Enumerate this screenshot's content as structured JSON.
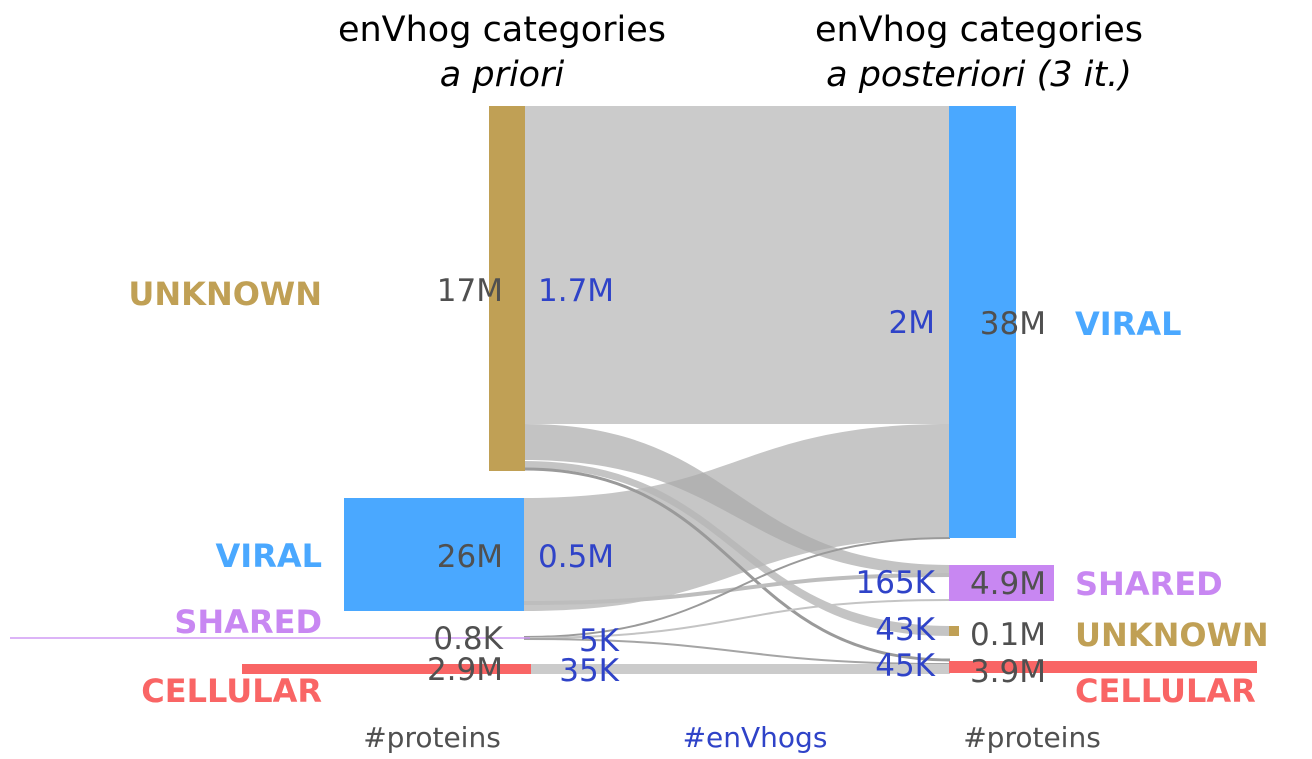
{
  "chart_data": {
    "type": "sankey",
    "columns": [
      {
        "title": "enVhog categories",
        "subtitle": "a priori"
      },
      {
        "title": "enVhog categories",
        "subtitle": "a posteriori (3 it.)"
      }
    ],
    "left_nodes": [
      {
        "label": "UNKNOWN",
        "proteins": "17M",
        "envhogs": "1.7M",
        "color": "#c0a055"
      },
      {
        "label": "VIRAL",
        "proteins": "26M",
        "envhogs": "0.5M",
        "color": "#4aa8ff"
      },
      {
        "label": "SHARED",
        "proteins": "0.8K",
        "envhogs": "5K",
        "color": "#c887f2"
      },
      {
        "label": "CELLULAR",
        "proteins": "2.9M",
        "envhogs": "35K",
        "color": "#f96565"
      }
    ],
    "right_nodes": [
      {
        "label": "VIRAL",
        "proteins": "38M",
        "envhogs": "2M",
        "color": "#4aa8ff"
      },
      {
        "label": "SHARED",
        "proteins": "4.9M",
        "envhogs": "165K",
        "color": "#c887f2"
      },
      {
        "label": "UNKNOWN",
        "proteins": "0.1M",
        "envhogs": "43K",
        "color": "#c0a055"
      },
      {
        "label": "CELLULAR",
        "proteins": "3.9M",
        "envhogs": "45K",
        "color": "#f96565"
      }
    ],
    "footer": {
      "left": "#proteins",
      "middle": "#enVhogs",
      "right": "#proteins"
    },
    "colors": {
      "number_text": "#505050",
      "envhog_text": "#2f43c8",
      "flow": "#c8c8c8"
    }
  }
}
